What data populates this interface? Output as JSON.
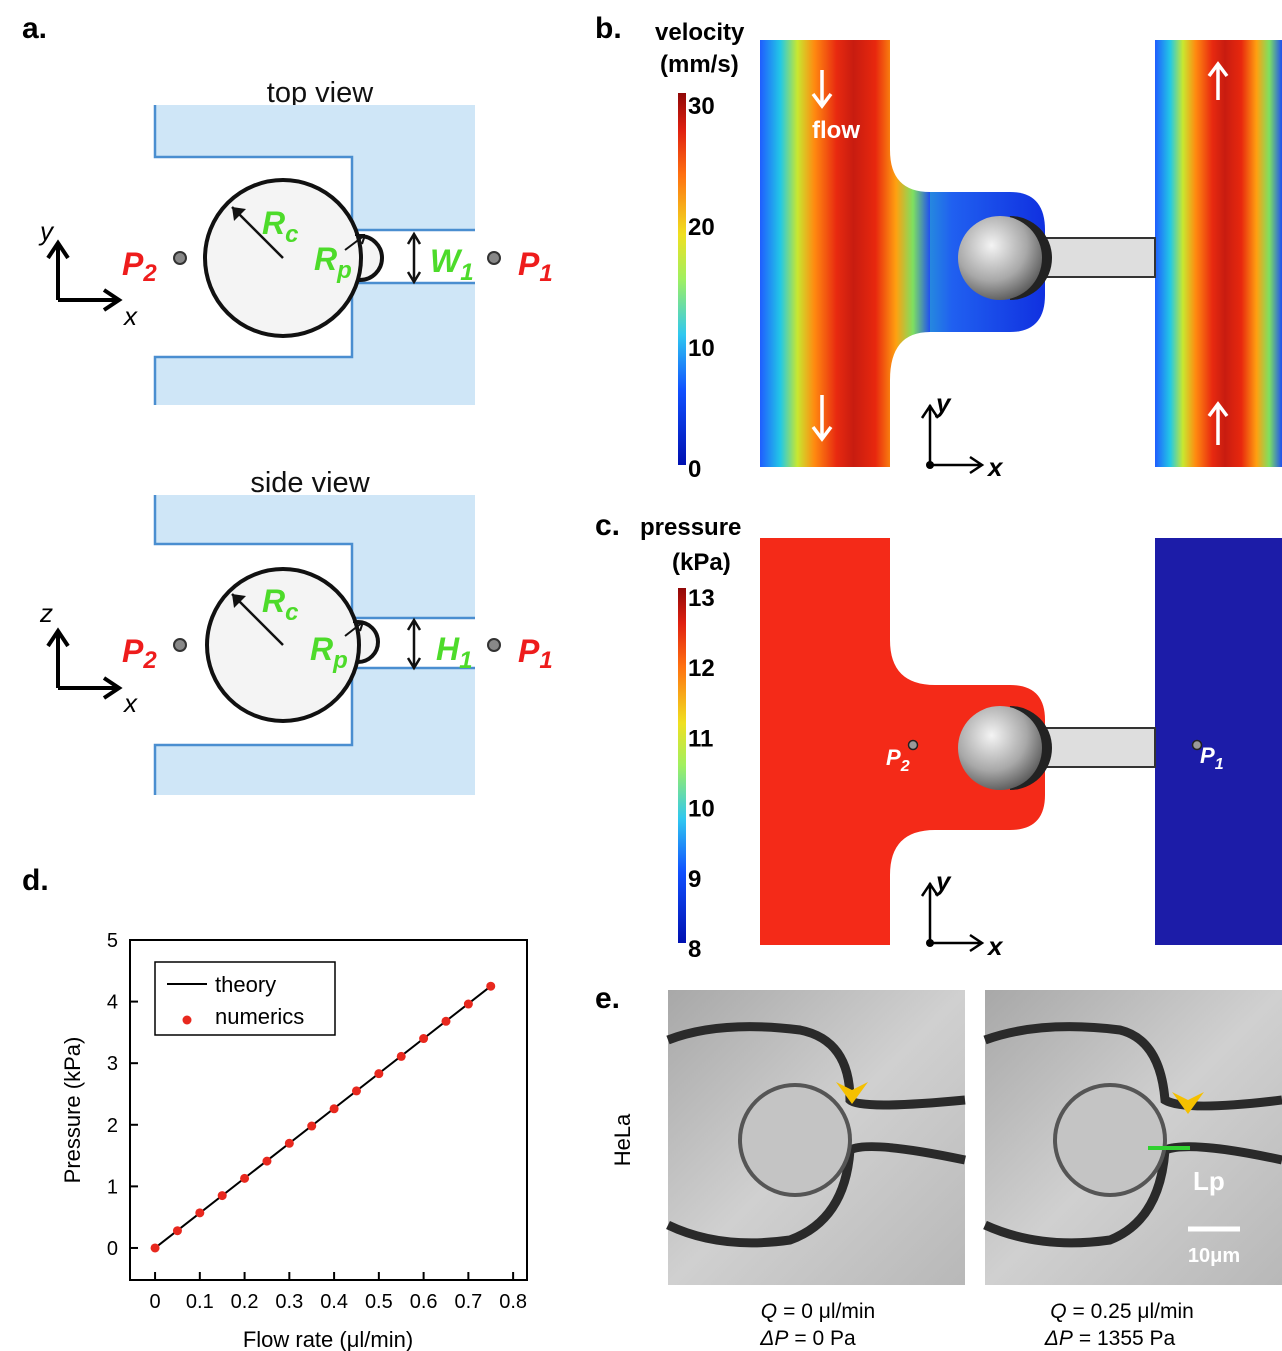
{
  "labels": {
    "a": "a.",
    "b": "b.",
    "c": "c.",
    "d": "d.",
    "e": "e."
  },
  "panel_a": {
    "top_view": {
      "title": "top view",
      "Rc": {
        "main": "R",
        "sub": "c"
      },
      "Rp": {
        "main": "R",
        "sub": "p"
      },
      "W1": {
        "main": "W",
        "sub": "1"
      },
      "P2": {
        "main": "P",
        "sub": "2"
      },
      "P1": {
        "main": "P",
        "sub": "1"
      },
      "axis_v": "y",
      "axis_h": "x"
    },
    "side_view": {
      "title": "side view",
      "Rc": {
        "main": "R",
        "sub": "c"
      },
      "Rp": {
        "main": "R",
        "sub": "p"
      },
      "H1": {
        "main": "H",
        "sub": "1"
      },
      "P2": {
        "main": "P",
        "sub": "2"
      },
      "P1": {
        "main": "P",
        "sub": "1"
      },
      "axis_v": "z",
      "axis_h": "x"
    }
  },
  "panel_b": {
    "colorbar_title": [
      "velocity",
      "(mm/s)"
    ],
    "colorbar_ticks": [
      0,
      10,
      20,
      30
    ],
    "flow": "flow",
    "axis_v": "y",
    "axis_h": "x"
  },
  "panel_c": {
    "colorbar_title": [
      "pressure",
      "(kPa)"
    ],
    "colorbar_ticks": [
      8,
      9,
      10,
      11,
      12,
      13
    ],
    "P2": {
      "main": "P",
      "sub": "2"
    },
    "P1": {
      "main": "P",
      "sub": "1"
    },
    "axis_v": "y",
    "axis_h": "x"
  },
  "chart_data": {
    "type": "line",
    "x_label": "Flow rate (μl/min)",
    "y_label": "Pressure (kPa)",
    "xlim": [
      -0.056,
      0.831
    ],
    "ylim": [
      -0.52,
      5
    ],
    "xticks": [
      0,
      0.1,
      0.2,
      0.3,
      0.4,
      0.5,
      0.6,
      0.7,
      0.8
    ],
    "yticks": [
      0,
      1,
      2,
      3,
      4,
      5
    ],
    "legend": "upper left",
    "series": [
      {
        "name": "theory",
        "color": "#000000",
        "x": [
          0,
          0.75
        ],
        "values": [
          0,
          4.25
        ]
      },
      {
        "name": "numerics",
        "color": "#e8281e",
        "x": [
          0,
          0.05,
          0.1,
          0.15,
          0.2,
          0.25,
          0.3,
          0.35,
          0.4,
          0.45,
          0.5,
          0.55,
          0.6,
          0.65,
          0.7,
          0.75
        ],
        "values": [
          0,
          0.28,
          0.57,
          0.85,
          1.13,
          1.41,
          1.7,
          1.98,
          2.26,
          2.55,
          2.83,
          3.11,
          3.4,
          3.68,
          3.96,
          4.25
        ]
      }
    ]
  },
  "panel_e": {
    "row_label": "HeLa",
    "Lp": "Lp",
    "scale": "10μm",
    "captions": [
      {
        "q_var": "Q",
        "q_text": "= 0 μl/min",
        "p_var": "ΔP",
        "p_text": "= 0 Pa"
      },
      {
        "q_var": "Q",
        "q_text": "= 0.25 μl/min",
        "p_var": "ΔP",
        "p_text": "= 1355 Pa"
      }
    ]
  }
}
